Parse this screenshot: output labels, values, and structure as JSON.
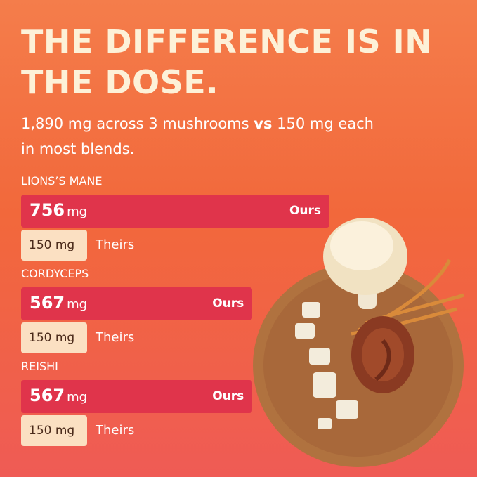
{
  "chart_data": {
    "type": "bar",
    "title": [
      "THE DIFFERENCE IS IN",
      "THE DOSE."
    ],
    "subtitle": [
      "1,890 mg across 3 mushrooms ",
      "vs",
      " 150 mg each",
      "in most blends."
    ],
    "categories": [
      "LIONS’S MANE",
      "CORDYCEPS",
      "REISHI"
    ],
    "unit": "mg",
    "series": [
      {
        "name": "Ours",
        "color": "#e0344b",
        "values": [
          756,
          567,
          567
        ]
      },
      {
        "name": "Theirs",
        "color": "#fbe0c2",
        "values": [
          150,
          150,
          150
        ],
        "value_labels": [
          "150 mg",
          "150 mg",
          "150 mg"
        ]
      }
    ]
  }
}
